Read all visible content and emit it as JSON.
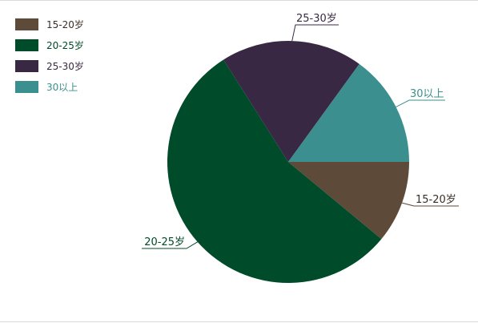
{
  "chart_data": {
    "type": "pie",
    "slices": [
      {
        "name": "15-20岁",
        "value": 11,
        "color": "#5d4a39"
      },
      {
        "name": "20-25岁",
        "value": 55,
        "color": "#004b29"
      },
      {
        "name": "25-30岁",
        "value": 19,
        "color": "#392844"
      },
      {
        "name": "30以上",
        "value": 15,
        "color": "#3b8f8e"
      }
    ],
    "legend_placement": "top-left",
    "legend_text_colors": [
      "#3a2f26",
      "#004b29",
      "#392844",
      "#3b8f8e"
    ]
  }
}
